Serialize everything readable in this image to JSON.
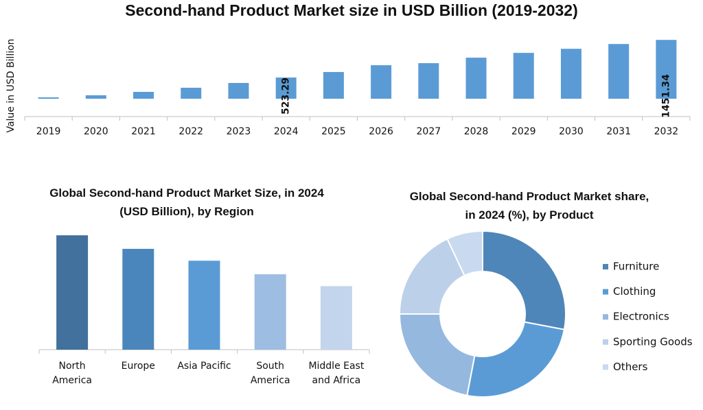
{
  "chart_data": [
    {
      "type": "bar",
      "title": "Second-hand Product Market size in USD Billion (2019-2032)",
      "y_label": "Value in USD Billion",
      "categories": [
        "2019",
        "2020",
        "2021",
        "2022",
        "2023",
        "2024",
        "2025",
        "2026",
        "2027",
        "2028",
        "2029",
        "2030",
        "2031",
        "2032"
      ],
      "values": [
        34,
        85,
        169,
        271,
        389,
        523.29,
        659,
        827,
        878,
        1013,
        1131,
        1232,
        1350,
        1451.34
      ],
      "value_labels": [
        null,
        null,
        null,
        null,
        null,
        "523.29",
        null,
        null,
        null,
        null,
        null,
        null,
        null,
        "1451.34"
      ],
      "color": "#5b9bd5",
      "ylim": [
        -440,
        1590
      ]
    },
    {
      "type": "bar",
      "title": "Global Second-hand Product Market Size, in 2024 (USD Billion), by Region",
      "categories": [
        "North America",
        "Europe",
        "Asia Pacific",
        "South America",
        "Middle East and Africa"
      ],
      "values": [
        135,
        119,
        105,
        89,
        75
      ],
      "colors": [
        "#41719c",
        "#4a86bb",
        "#5b9bd5",
        "#9dbde3",
        "#c3d5ec"
      ],
      "ylim": [
        0,
        140
      ]
    },
    {
      "type": "donut",
      "title": "Global Second-hand Product Market share, in 2024 (%), by Product",
      "categories": [
        "Furniture",
        "Clothing",
        "Electronics",
        "Sporting Goods",
        "Others"
      ],
      "values": [
        28,
        25,
        22,
        18,
        7
      ],
      "colors": [
        "#4f86b9",
        "#5b9bd5",
        "#95b8df",
        "#bcd0e9",
        "#c9d9ef"
      ],
      "legend": "right"
    }
  ]
}
